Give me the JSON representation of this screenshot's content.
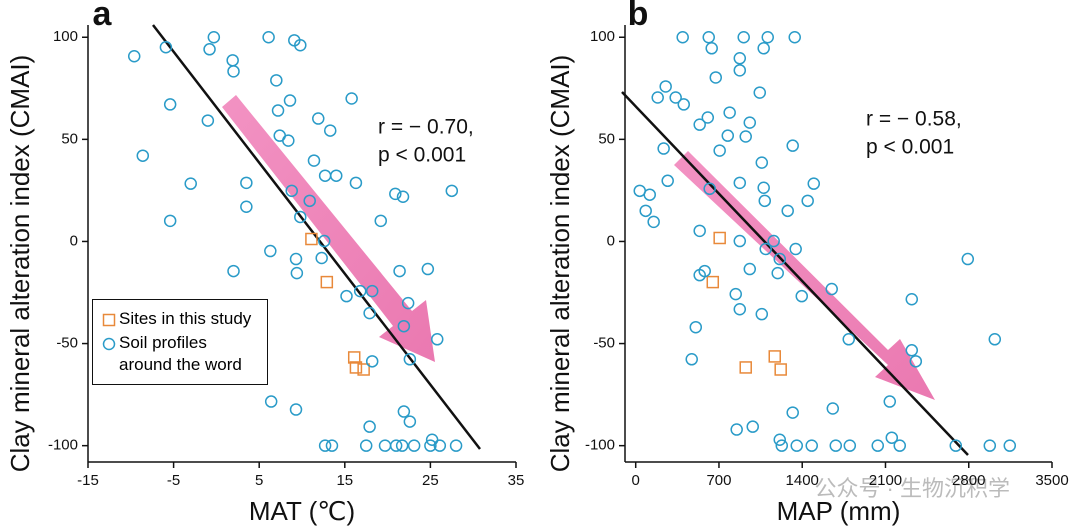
{
  "chart_data": [
    {
      "type": "scatter",
      "panel_label": "a",
      "xlabel": "MAT (℃)",
      "ylabel": "Clay mineral alteration index (CMAI)",
      "annotations": [
        "r = − 0.70,",
        "p < 0.001"
      ],
      "xlim": [
        -15,
        35
      ],
      "ylim": [
        -108,
        106
      ],
      "xticks": [
        -15,
        -5,
        5,
        15,
        25,
        35
      ],
      "yticks": [
        -100,
        -50,
        0,
        50,
        100
      ],
      "legend": "lower left",
      "series": [
        {
          "name": "Sites in this study",
          "color": "#e8893a",
          "marker": "square",
          "x": [
            11.1,
            12.9,
            16.1,
            16.3,
            17.2
          ],
          "values": [
            1.2,
            -19.9,
            -56.8,
            -61.7,
            -62.7
          ]
        },
        {
          "name": "Soil profiles around the word",
          "color": "#2a9bc8",
          "marker": "circle",
          "x": [
            -9.6,
            -5.9,
            -5.4,
            -8.6,
            -5.4,
            -3.0,
            -1.0,
            -0.8,
            -0.3,
            1.9,
            2.0,
            3.5,
            3.5,
            2.0,
            6.1,
            7.0,
            7.2,
            7.4,
            6.3,
            6.4,
            9.1,
            9.8,
            8.6,
            8.4,
            8.8,
            9.8,
            9.3,
            9.4,
            10.9,
            11.4,
            11.9,
            12.7,
            12.6,
            13.3,
            14.0,
            15.8,
            16.3,
            15.2,
            16.8,
            18.2,
            17.9,
            18.2,
            17.9,
            12.7,
            13.5,
            17.5,
            19.7,
            21.0,
            21.7,
            23.1,
            25.0,
            26.1,
            28.0,
            21.9,
            22.6,
            25.2,
            20.9,
            21.8,
            27.5,
            21.4,
            22.4,
            24.7,
            21.9,
            25.8,
            22.6,
            12.3,
            9.3,
            19.2
          ],
          "values": [
            90.7,
            95.1,
            67.1,
            42.0,
            10.1,
            28.3,
            59.2,
            94.1,
            100,
            88.7,
            83.3,
            28.7,
            17.0,
            -14.5,
            100,
            78.9,
            64.1,
            51.8,
            -4.7,
            -78.4,
            98.5,
            96.1,
            69.0,
            49.4,
            24.8,
            12.0,
            -8.6,
            -15.5,
            19.9,
            39.6,
            60.2,
            32.2,
            0.2,
            54.3,
            32.2,
            70.0,
            28.7,
            -26.8,
            -24.3,
            -24.3,
            -35.1,
            -58.7,
            -90.7,
            -100,
            -100,
            -100,
            -100,
            -100,
            -100,
            -100,
            -100,
            -100,
            -100,
            -83.3,
            -88.2,
            -97.1,
            23.3,
            21.9,
            24.8,
            -14.5,
            -30.2,
            -13.5,
            -41.5,
            -47.9,
            -57.7,
            -8.1,
            -82.3,
            10.1
          ]
        }
      ]
    },
    {
      "type": "scatter",
      "panel_label": "b",
      "xlabel": "MAP (mm)",
      "ylabel": "Clay mineral alteration index (CMAI)",
      "annotations": [
        "r = − 0.58,",
        "p < 0.001"
      ],
      "xlim": [
        -90,
        3500
      ],
      "ylim": [
        -108,
        106
      ],
      "xticks": [
        0,
        700,
        1400,
        2100,
        2800,
        3500
      ],
      "yticks": [
        -100,
        -50,
        0,
        50,
        100
      ],
      "series": [
        {
          "color": "#e8893a",
          "marker": "square",
          "x": [
            706,
            648,
            925,
            1169,
            1219
          ],
          "values": [
            1.7,
            -19.9,
            -61.7,
            -56.3,
            -62.7
          ]
        },
        {
          "color": "#2a9bc8",
          "marker": "circle",
          "x": [
            395,
            614,
            908,
            1110,
            1337,
            639,
            875,
            875,
            673,
            252,
            185,
            336,
            404,
            1043,
            606,
            790,
            959,
            538,
            925,
            774,
            235,
            706,
            1060,
            1320,
            34,
            118,
            84,
            151,
            269,
            875,
            622,
            1076,
            1085,
            1278,
            1446,
            1497,
            538,
            875,
            1160,
            1093,
            1345,
            1211,
            959,
            580,
            538,
            1194,
            841,
            1396,
            875,
            1060,
            505,
            471,
            1648,
            1791,
            2321,
            2321,
            2355,
            2792,
            3019,
            2136,
            1657,
            1320,
            984,
            849,
            1211,
            1228,
            1354,
            1480,
            1682,
            1800,
            2035,
            2220,
            2153,
            2691,
            2977,
            3145,
            1076
          ],
          "values": [
            100,
            100,
            100,
            100,
            100,
            94.6,
            89.7,
            83.8,
            80.3,
            75.9,
            70.5,
            70.5,
            67.1,
            72.9,
            60.7,
            63.1,
            58.2,
            57.2,
            51.4,
            51.8,
            45.5,
            44.5,
            38.6,
            46.9,
            24.8,
            22.9,
            15.0,
            9.6,
            29.7,
            28.7,
            25.8,
            26.3,
            19.9,
            15.0,
            19.9,
            28.3,
            5.2,
            0.2,
            0.2,
            -3.7,
            -3.7,
            -8.6,
            -13.5,
            -14.5,
            -16.5,
            -15.5,
            -25.8,
            -26.8,
            -33.2,
            -35.6,
            -42.0,
            -57.7,
            -23.3,
            -47.9,
            -28.3,
            -53.3,
            -58.7,
            -8.6,
            -47.9,
            -78.4,
            -81.8,
            -83.8,
            -90.7,
            -92.1,
            -97.1,
            -100,
            -100,
            -100,
            -100,
            -100,
            -100,
            -100,
            -96.1,
            -100,
            -100,
            -100,
            94.6
          ]
        }
      ]
    }
  ],
  "watermark": "公众号 · 生物沉积学"
}
